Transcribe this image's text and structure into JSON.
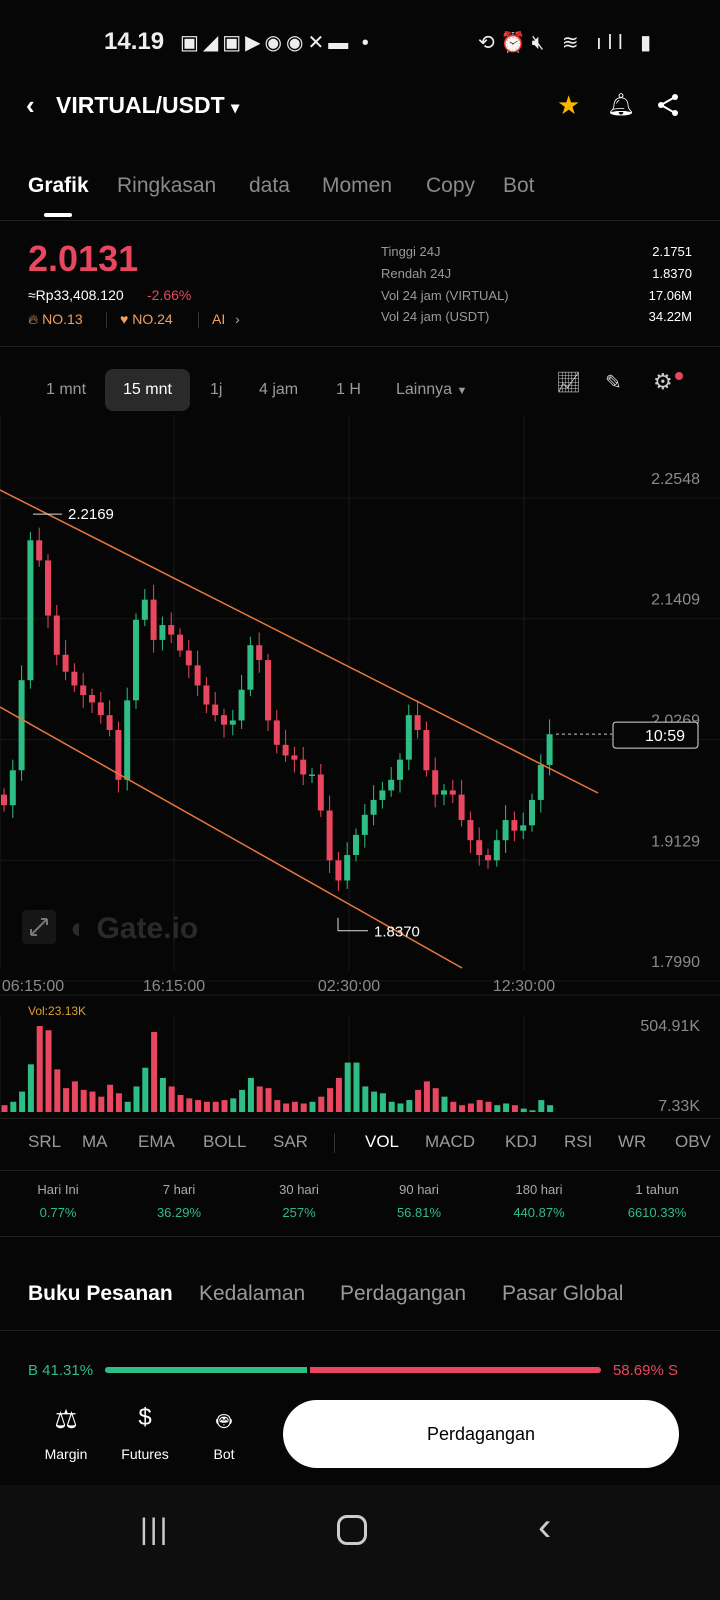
{
  "status_bar": {
    "time": "14.19",
    "icons": [
      "notif-icons",
      "alarm-icon",
      "mute-icon",
      "wifi-icon",
      "signal-icon",
      "battery-icon"
    ]
  },
  "header": {
    "pair": "VIRTUAL/USDT",
    "dropdown": "▾"
  },
  "tabs": [
    "Grafik",
    "Ringkasan",
    "data",
    "Momen",
    "Copy",
    "Bot"
  ],
  "price": {
    "last": "2.0131",
    "fiat": "≈Rp33,408.120",
    "change": "-2.66%",
    "rank_hot": "NO.13",
    "rank_gain": "NO.24",
    "ai": "AI"
  },
  "stats": [
    {
      "label": "Tinggi 24J",
      "value": "2.1751"
    },
    {
      "label": "Rendah 24J",
      "value": "1.8370"
    },
    {
      "label": "Vol 24 jam (VIRTUAL)",
      "value": "17.06M"
    },
    {
      "label": "Vol 24 jam (USDT)",
      "value": "34.22M"
    }
  ],
  "timeframes": [
    "1 mnt",
    "15 mnt",
    "1j",
    "4 jam",
    "1 H",
    "Lainnya"
  ],
  "colors": {
    "up": "#2ebd85",
    "down": "#e8475f",
    "trendline": "#e8793a",
    "accent": "#f5a623"
  },
  "chart_data": {
    "type": "candlestick",
    "interval": "15 mnt",
    "y_ticks": [
      "2.2548",
      "2.1409",
      "2.0269",
      "1.9129",
      "1.7990"
    ],
    "ylim": [
      1.799,
      2.2548
    ],
    "x_ticks": [
      "06:15:00",
      "16:15:00",
      "02:30:00",
      "12:30:00"
    ],
    "high_label": "2.2169",
    "low_label": "1.8370",
    "countdown": "10:59",
    "watermark": "Gate.io",
    "closes": [
      1.946,
      1.979,
      2.064,
      2.196,
      2.177,
      2.125,
      2.088,
      2.072,
      2.059,
      2.05,
      2.043,
      2.031,
      2.017,
      1.97,
      2.045,
      2.121,
      2.14,
      2.102,
      2.116,
      2.107,
      2.092,
      2.078,
      2.059,
      2.041,
      2.031,
      2.022,
      2.026,
      2.055,
      2.097,
      2.083,
      2.026,
      2.003,
      1.993,
      1.989,
      1.975,
      1.975,
      1.941,
      1.894,
      1.875,
      1.899,
      1.918,
      1.937,
      1.951,
      1.96,
      1.97,
      1.989,
      2.031,
      2.017,
      1.979,
      1.956,
      1.96,
      1.956,
      1.932,
      1.913,
      1.899,
      1.894,
      1.913,
      1.932,
      1.922,
      1.927,
      1.951,
      1.984,
      2.013
    ],
    "volume": {
      "label": "Vol:23.13K",
      "y_ticks": [
        "504.91K",
        "7.33K"
      ],
      "values_k": [
        40,
        60,
        120,
        280,
        505,
        480,
        250,
        140,
        180,
        130,
        120,
        90,
        160,
        110,
        60,
        150,
        260,
        470,
        200,
        150,
        100,
        80,
        70,
        60,
        60,
        70,
        80,
        130,
        200,
        150,
        140,
        70,
        50,
        60,
        50,
        60,
        90,
        140,
        200,
        290,
        290,
        150,
        120,
        110,
        60,
        50,
        70,
        130,
        180,
        140,
        90,
        60,
        40,
        50,
        70,
        60,
        40,
        50,
        40,
        20,
        10,
        70,
        40
      ]
    }
  },
  "indicators": {
    "main": [
      "SRL",
      "MA",
      "EMA",
      "BOLL",
      "SAR"
    ],
    "sub": [
      "VOL",
      "MACD",
      "KDJ",
      "RSI",
      "WR",
      "OBV"
    ]
  },
  "returns": [
    {
      "label": "Hari Ini",
      "value": "0.77%"
    },
    {
      "label": "7 hari",
      "value": "36.29%"
    },
    {
      "label": "30 hari",
      "value": "257%"
    },
    {
      "label": "90 hari",
      "value": "56.81%"
    },
    {
      "label": "180 hari",
      "value": "440.87%"
    },
    {
      "label": "1 tahun",
      "value": "6610.33%"
    }
  ],
  "orderbook_tabs": [
    "Buku Pesanan",
    "Kedalaman",
    "Perdagangan",
    "Pasar Global"
  ],
  "ratio": {
    "buy": "B 41.31%",
    "sell": "58.69% S",
    "buy_pct": 41.31
  },
  "bottom_nav": {
    "items": [
      "Margin",
      "Futures",
      "Bot"
    ],
    "trade": "Perdagangan"
  }
}
